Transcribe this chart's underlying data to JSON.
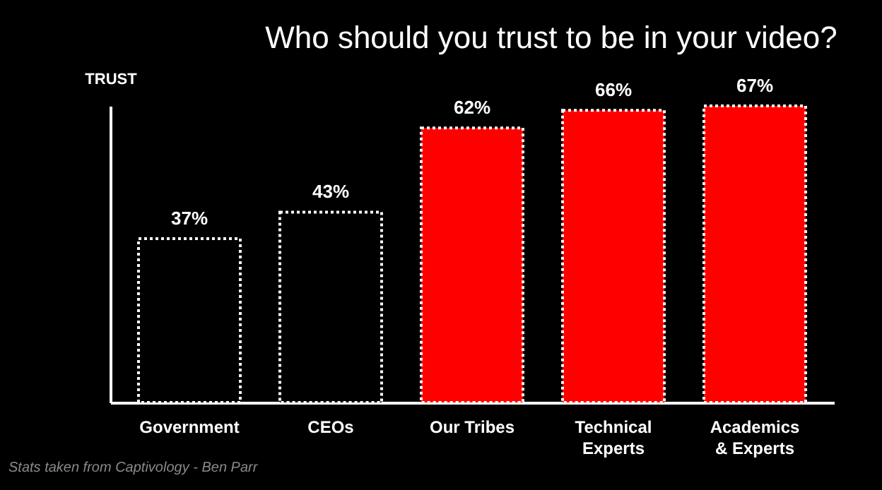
{
  "chart_data": {
    "type": "bar",
    "title": "Who should you trust to be in your video?",
    "ylabel": "TRUST",
    "categories": [
      "Government",
      "CEOs",
      "Our Tribes",
      "Technical\nExperts",
      "Academics\n& Experts"
    ],
    "values": [
      37,
      43,
      62,
      66,
      67
    ],
    "colors": [
      "#000000",
      "#000000",
      "#ff0000",
      "#ff0000",
      "#ff0000"
    ],
    "value_labels": [
      "37%",
      "43%",
      "62%",
      "66%",
      "67%"
    ],
    "grid": false,
    "tick_labels": "x",
    "annotations": [
      "Stats taken from Captivology - Ben Parr"
    ]
  }
}
